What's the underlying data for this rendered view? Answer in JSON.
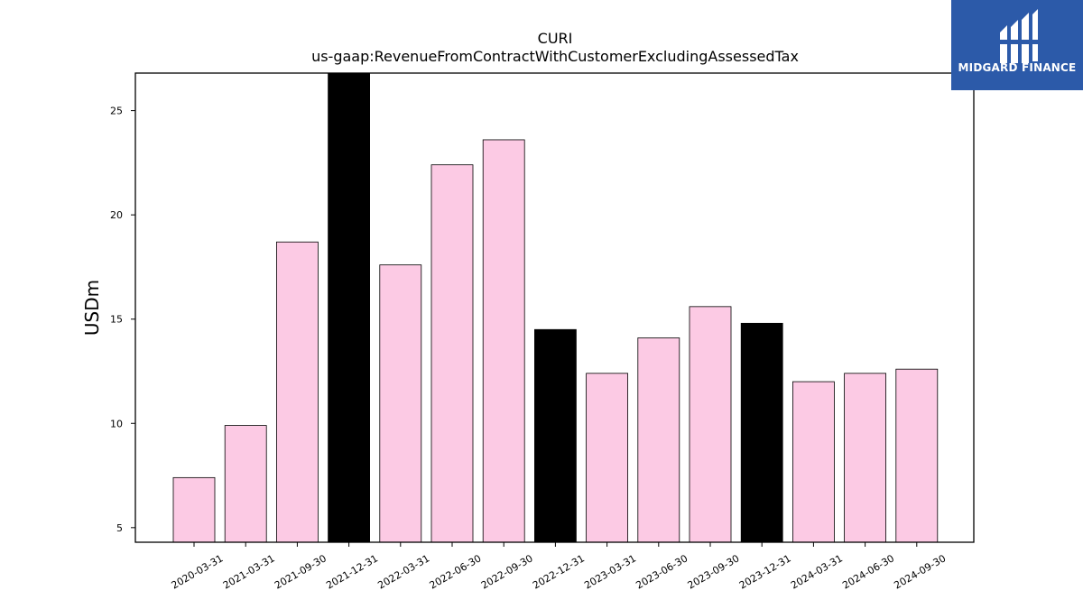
{
  "logo": {
    "text": "MIDGARD FINANCE",
    "icon": "midgard-mark-icon",
    "bg": "#2c5aa9"
  },
  "chart_data": {
    "type": "bar",
    "title": "CURI",
    "subtitle": "us-gaap:RevenueFromContractWithCustomerExcludingAssessedTax",
    "xlabel": "",
    "ylabel": "USDm",
    "ylim": [
      4.3,
      26.8
    ],
    "yticks": [
      5,
      10,
      15,
      20,
      25
    ],
    "grid": false,
    "categories": [
      "2020-03-31",
      "2021-03-31",
      "2021-09-30",
      "2021-12-31",
      "2022-03-31",
      "2022-06-30",
      "2022-09-30",
      "2022-12-31",
      "2023-03-31",
      "2023-06-30",
      "2023-09-30",
      "2023-12-31",
      "2024-03-31",
      "2024-06-30",
      "2024-09-30"
    ],
    "values": [
      7.4,
      9.9,
      18.7,
      26.8,
      17.6,
      22.4,
      23.6,
      14.5,
      12.4,
      14.1,
      15.6,
      14.8,
      12.0,
      12.4,
      12.6
    ],
    "highlight": [
      false,
      false,
      false,
      true,
      false,
      false,
      false,
      true,
      false,
      false,
      false,
      true,
      false,
      false,
      false
    ],
    "colors": {
      "bar": "#fccae4",
      "highlight": "#000000",
      "edge": "#000000"
    }
  }
}
